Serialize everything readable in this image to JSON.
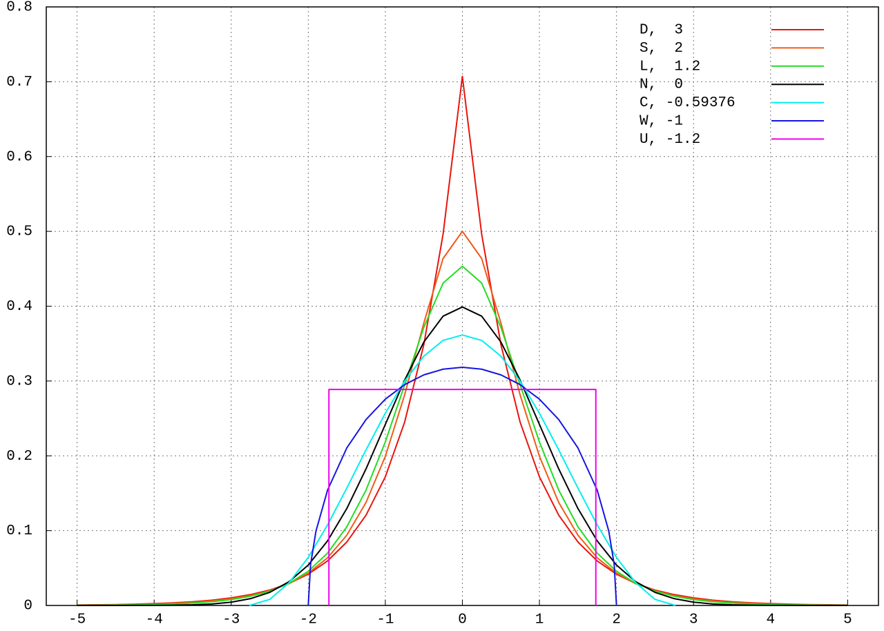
{
  "chart_data": {
    "type": "line",
    "x": [
      -5,
      -4.75,
      -4.5,
      -4.25,
      -4,
      -3.75,
      -3.5,
      -3.25,
      -3,
      -2.75,
      -2.5,
      -2.25,
      -2,
      -1.75,
      -1.5,
      -1.25,
      -1,
      -0.75,
      -0.5,
      -0.25,
      0,
      0.25,
      0.5,
      0.75,
      1,
      1.25,
      1.5,
      1.75,
      2,
      2.25,
      2.5,
      2.75,
      3,
      3.25,
      3.5,
      3.75,
      4,
      4.25,
      4.5,
      4.75,
      5
    ],
    "series": [
      {
        "name": "D,  3",
        "color": "#e8140c",
        "values": [
          0.0006,
          0.0009,
          0.0012,
          0.0017,
          0.0025,
          0.0035,
          0.005,
          0.0071,
          0.0102,
          0.0145,
          0.0206,
          0.0293,
          0.0418,
          0.0595,
          0.0848,
          0.1207,
          0.1719,
          0.2448,
          0.3487,
          0.4965,
          0.7071,
          0.4965,
          0.3487,
          0.2448,
          0.1719,
          0.1207,
          0.0848,
          0.0595,
          0.0418,
          0.0293,
          0.0206,
          0.0145,
          0.0102,
          0.0071,
          0.005,
          0.0035,
          0.0025,
          0.0017,
          0.0012,
          0.0009,
          0.0006
        ]
      },
      {
        "name": "S,  2",
        "color": "#f05a14",
        "values": [
          0.0004,
          0.0006,
          0.0009,
          0.0013,
          0.0019,
          0.0028,
          0.0041,
          0.0061,
          0.009,
          0.0133,
          0.0197,
          0.0291,
          0.0431,
          0.0637,
          0.0939,
          0.1377,
          0.1993,
          0.2812,
          0.3775,
          0.4638,
          0.5,
          0.4638,
          0.3775,
          0.2812,
          0.1993,
          0.1377,
          0.0939,
          0.0637,
          0.0431,
          0.0291,
          0.0197,
          0.0133,
          0.009,
          0.0061,
          0.0041,
          0.0028,
          0.0019,
          0.0013,
          0.0009,
          0.0006,
          0.0004
        ]
      },
      {
        "name": "L,  1.2",
        "color": "#22dd22",
        "values": [
          0.0002,
          0.0003,
          0.0005,
          0.0008,
          0.0013,
          0.002,
          0.0032,
          0.005,
          0.0078,
          0.0122,
          0.0191,
          0.0296,
          0.0457,
          0.0699,
          0.1051,
          0.1543,
          0.2186,
          0.2947,
          0.3717,
          0.4309,
          0.4534,
          0.4309,
          0.3717,
          0.2947,
          0.2186,
          0.1543,
          0.1051,
          0.0699,
          0.0457,
          0.0296,
          0.0191,
          0.0122,
          0.0078,
          0.005,
          0.0032,
          0.002,
          0.0013,
          0.0008,
          0.0005,
          0.0003,
          0.0002
        ]
      },
      {
        "name": "N,  0",
        "color": "#000000",
        "values": [
          0,
          0,
          0,
          0.0001,
          0.0001,
          0.0004,
          0.0009,
          0.002,
          0.0044,
          0.0091,
          0.0175,
          0.0317,
          0.054,
          0.0863,
          0.1295,
          0.1826,
          0.242,
          0.3011,
          0.3521,
          0.3867,
          0.3989,
          0.3867,
          0.3521,
          0.3011,
          0.242,
          0.1826,
          0.1295,
          0.0863,
          0.054,
          0.0317,
          0.0175,
          0.0091,
          0.0044,
          0.002,
          0.0009,
          0.0004,
          0.0001,
          0.0001,
          0,
          0,
          0
        ]
      },
      {
        "name": "C, -0.59376",
        "color": "#00eeee",
        "x": [
          -2.766,
          -2.5,
          -2.25,
          -2,
          -1.75,
          -1.5,
          -1.25,
          -1,
          -0.75,
          -0.5,
          -0.25,
          0,
          0.25,
          0.5,
          0.75,
          1,
          1.25,
          1.5,
          1.75,
          2,
          2.25,
          2.5,
          2.766
        ],
        "values": [
          0,
          0.0081,
          0.0303,
          0.0642,
          0.1076,
          0.1568,
          0.208,
          0.257,
          0.2998,
          0.3332,
          0.3543,
          0.3615,
          0.3543,
          0.3332,
          0.2998,
          0.257,
          0.208,
          0.1568,
          0.1076,
          0.0642,
          0.0303,
          0.0081,
          0
        ]
      },
      {
        "name": "W, -1",
        "color": "#1414e0",
        "x": [
          -2,
          -1.97,
          -1.9,
          -1.75,
          -1.5,
          -1.25,
          -1,
          -0.75,
          -0.5,
          -0.25,
          0,
          0.25,
          0.5,
          0.75,
          1,
          1.25,
          1.5,
          1.75,
          1.9,
          1.97,
          2
        ],
        "values": [
          0,
          0.0549,
          0.0994,
          0.1541,
          0.2105,
          0.2485,
          0.2757,
          0.2951,
          0.3082,
          0.3158,
          0.3183,
          0.3158,
          0.3082,
          0.2951,
          0.2757,
          0.2485,
          0.2105,
          0.1541,
          0.0994,
          0.0549,
          0
        ]
      },
      {
        "name": "U, -1.2",
        "color": "#ee00ee",
        "x": [
          -1.732,
          -1.732,
          1.732,
          1.732
        ],
        "values": [
          0,
          0.2887,
          0.2887,
          0
        ]
      }
    ],
    "xlim": [
      -5.4,
      5.4
    ],
    "xticks": [
      -5,
      -4,
      -3,
      -2,
      -1,
      0,
      1,
      2,
      3,
      4,
      5
    ],
    "ylim": [
      0,
      0.8
    ],
    "yticks": [
      0,
      0.1,
      0.2,
      0.3,
      0.4,
      0.5,
      0.6,
      0.7,
      0.8
    ],
    "grid": true
  }
}
